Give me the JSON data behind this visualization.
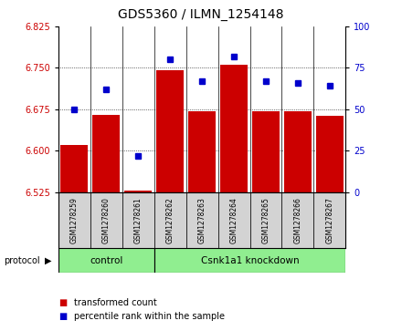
{
  "title": "GDS5360 / ILMN_1254148",
  "samples": [
    "GSM1278259",
    "GSM1278260",
    "GSM1278261",
    "GSM1278262",
    "GSM1278263",
    "GSM1278264",
    "GSM1278265",
    "GSM1278266",
    "GSM1278267"
  ],
  "transformed_count": [
    6.61,
    6.665,
    6.528,
    6.745,
    6.672,
    6.755,
    6.672,
    6.672,
    6.663
  ],
  "percentile_rank": [
    50,
    62,
    22,
    80,
    67,
    82,
    67,
    66,
    64
  ],
  "ylim_left": [
    6.525,
    6.825
  ],
  "ylim_right": [
    0,
    100
  ],
  "yticks_left": [
    6.525,
    6.6,
    6.675,
    6.75,
    6.825
  ],
  "yticks_right": [
    0,
    25,
    50,
    75,
    100
  ],
  "bar_color": "#cc0000",
  "scatter_color": "#0000cc",
  "bar_bottom": 6.525,
  "control_count": 3,
  "knockdown_count": 6,
  "control_label": "control",
  "knockdown_label": "Csnk1a1 knockdown",
  "group_color": "#90ee90",
  "sample_box_color": "#d3d3d3",
  "protocol_label": "protocol",
  "legend_items": [
    {
      "color": "#cc0000",
      "label": "transformed count"
    },
    {
      "color": "#0000cc",
      "label": "percentile rank within the sample"
    }
  ],
  "tick_label_color_left": "#cc0000",
  "tick_label_color_right": "#0000cc",
  "title_fontsize": 10
}
